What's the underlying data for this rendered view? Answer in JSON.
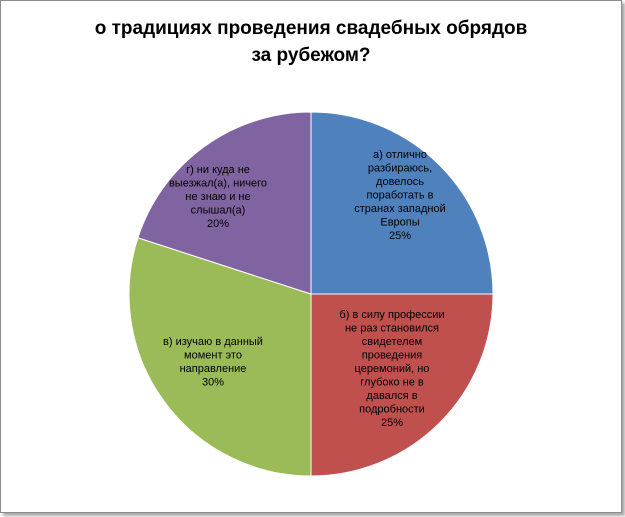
{
  "chart_data": {
    "type": "pie",
    "title_lines": [
      "о традициях проведения свадебных обрядов",
      "за рубежом?"
    ],
    "start_angle_deg": 0,
    "direction": "clockwise",
    "slices": [
      {
        "name": "а) отлично разбираюсь, довелось поработать в странах западной Европы",
        "label_lines": [
          "а) отлично",
          "разбираюсь,",
          "довелось",
          "поработать в",
          "странах западной",
          "Европы"
        ],
        "percent_label": "25%",
        "value": 25,
        "color": "#4f81bd"
      },
      {
        "name": "б) в силу профессии не раз становился свидетелем проведения церемоний, но глубоко не вдавался в подробности",
        "label_lines": [
          "б) в силу профессии",
          "не раз становился",
          "свидетелем",
          "проведения",
          "церемоний, но",
          "глубоко не в",
          "давался в",
          "подробности"
        ],
        "percent_label": "25%",
        "value": 25,
        "color": "#c0504d"
      },
      {
        "name": "в) изучаю в данный момент это направление",
        "label_lines": [
          "в) изучаю в данный",
          "момент это",
          "направление"
        ],
        "percent_label": "30%",
        "value": 30,
        "color": "#9bbb59"
      },
      {
        "name": "г) ни куда не выезжал(а), ничего не знаю и не слышал(а)",
        "label_lines": [
          "г) ни куда не",
          "выезжал(а), ничего",
          "не знаю и не",
          "слышал(а)"
        ],
        "percent_label": "20%",
        "value": 20,
        "color": "#8064a2"
      }
    ]
  }
}
